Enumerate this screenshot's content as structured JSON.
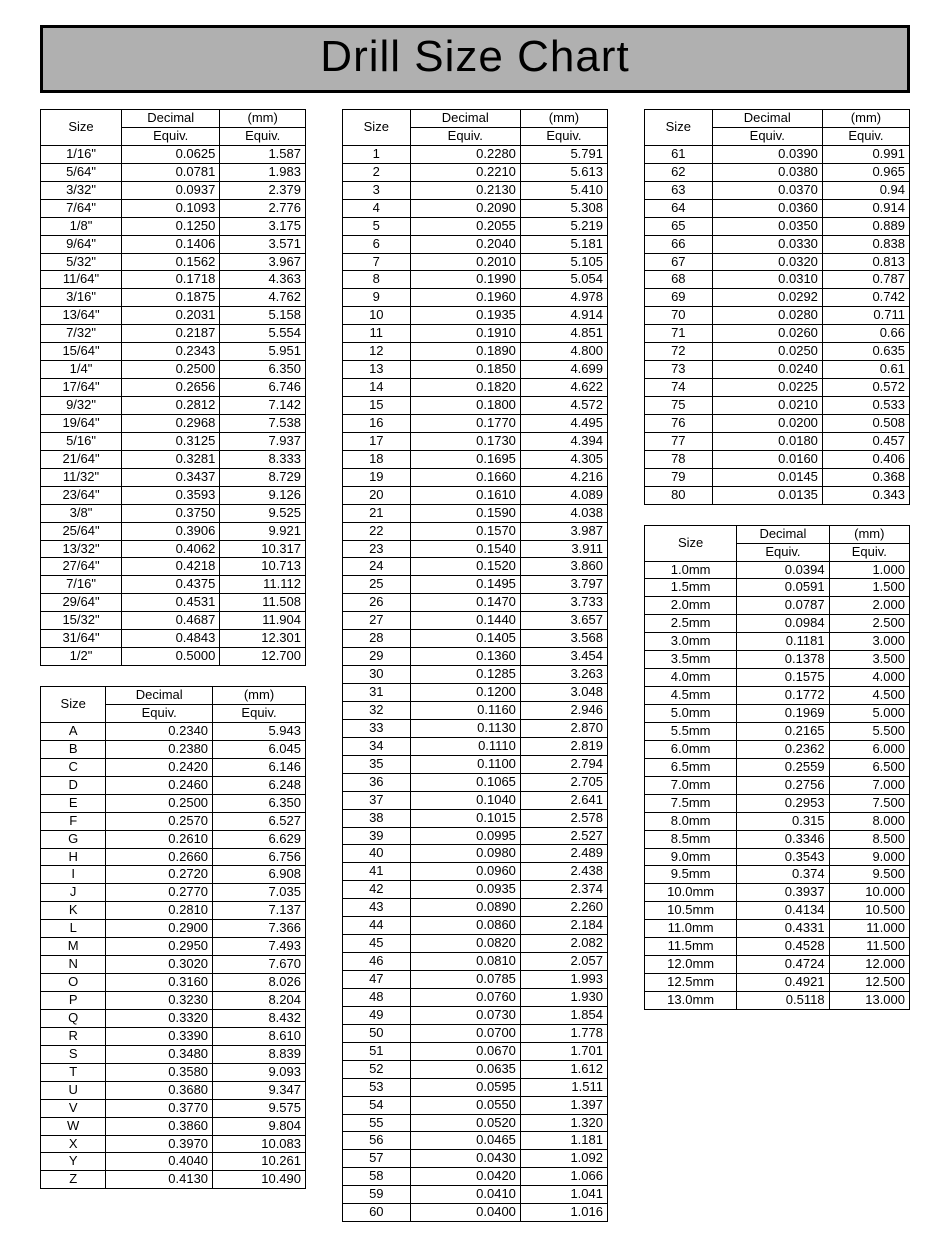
{
  "title": "Drill Size Chart",
  "columns": {
    "size": "Size",
    "dec1": "Decimal",
    "dec2": "Equiv.",
    "mm1": "(mm)",
    "mm2": "Equiv."
  },
  "fractional": [
    [
      "1/16\"",
      "0.0625",
      "1.587"
    ],
    [
      "5/64\"",
      "0.0781",
      "1.983"
    ],
    [
      "3/32\"",
      "0.0937",
      "2.379"
    ],
    [
      "7/64\"",
      "0.1093",
      "2.776"
    ],
    [
      "1/8\"",
      "0.1250",
      "3.175"
    ],
    [
      "9/64\"",
      "0.1406",
      "3.571"
    ],
    [
      "5/32\"",
      "0.1562",
      "3.967"
    ],
    [
      "11/64\"",
      "0.1718",
      "4.363"
    ],
    [
      "3/16\"",
      "0.1875",
      "4.762"
    ],
    [
      "13/64\"",
      "0.2031",
      "5.158"
    ],
    [
      "7/32\"",
      "0.2187",
      "5.554"
    ],
    [
      "15/64\"",
      "0.2343",
      "5.951"
    ],
    [
      "1/4\"",
      "0.2500",
      "6.350"
    ],
    [
      "17/64\"",
      "0.2656",
      "6.746"
    ],
    [
      "9/32\"",
      "0.2812",
      "7.142"
    ],
    [
      "19/64\"",
      "0.2968",
      "7.538"
    ],
    [
      "5/16\"",
      "0.3125",
      "7.937"
    ],
    [
      "21/64\"",
      "0.3281",
      "8.333"
    ],
    [
      "11/32\"",
      "0.3437",
      "8.729"
    ],
    [
      "23/64\"",
      "0.3593",
      "9.126"
    ],
    [
      "3/8\"",
      "0.3750",
      "9.525"
    ],
    [
      "25/64\"",
      "0.3906",
      "9.921"
    ],
    [
      "13/32\"",
      "0.4062",
      "10.317"
    ],
    [
      "27/64\"",
      "0.4218",
      "10.713"
    ],
    [
      "7/16\"",
      "0.4375",
      "11.112"
    ],
    [
      "29/64\"",
      "0.4531",
      "11.508"
    ],
    [
      "15/32\"",
      "0.4687",
      "11.904"
    ],
    [
      "31/64\"",
      "0.4843",
      "12.301"
    ],
    [
      "1/2\"",
      "0.5000",
      "12.700"
    ]
  ],
  "letter": [
    [
      "A",
      "0.2340",
      "5.943"
    ],
    [
      "B",
      "0.2380",
      "6.045"
    ],
    [
      "C",
      "0.2420",
      "6.146"
    ],
    [
      "D",
      "0.2460",
      "6.248"
    ],
    [
      "E",
      "0.2500",
      "6.350"
    ],
    [
      "F",
      "0.2570",
      "6.527"
    ],
    [
      "G",
      "0.2610",
      "6.629"
    ],
    [
      "H",
      "0.2660",
      "6.756"
    ],
    [
      "I",
      "0.2720",
      "6.908"
    ],
    [
      "J",
      "0.2770",
      "7.035"
    ],
    [
      "K",
      "0.2810",
      "7.137"
    ],
    [
      "L",
      "0.2900",
      "7.366"
    ],
    [
      "M",
      "0.2950",
      "7.493"
    ],
    [
      "N",
      "0.3020",
      "7.670"
    ],
    [
      "O",
      "0.3160",
      "8.026"
    ],
    [
      "P",
      "0.3230",
      "8.204"
    ],
    [
      "Q",
      "0.3320",
      "8.432"
    ],
    [
      "R",
      "0.3390",
      "8.610"
    ],
    [
      "S",
      "0.3480",
      "8.839"
    ],
    [
      "T",
      "0.3580",
      "9.093"
    ],
    [
      "U",
      "0.3680",
      "9.347"
    ],
    [
      "V",
      "0.3770",
      "9.575"
    ],
    [
      "W",
      "0.3860",
      "9.804"
    ],
    [
      "X",
      "0.3970",
      "10.083"
    ],
    [
      "Y",
      "0.4040",
      "10.261"
    ],
    [
      "Z",
      "0.4130",
      "10.490"
    ]
  ],
  "number": [
    [
      "1",
      "0.2280",
      "5.791"
    ],
    [
      "2",
      "0.2210",
      "5.613"
    ],
    [
      "3",
      "0.2130",
      "5.410"
    ],
    [
      "4",
      "0.2090",
      "5.308"
    ],
    [
      "5",
      "0.2055",
      "5.219"
    ],
    [
      "6",
      "0.2040",
      "5.181"
    ],
    [
      "7",
      "0.2010",
      "5.105"
    ],
    [
      "8",
      "0.1990",
      "5.054"
    ],
    [
      "9",
      "0.1960",
      "4.978"
    ],
    [
      "10",
      "0.1935",
      "4.914"
    ],
    [
      "11",
      "0.1910",
      "4.851"
    ],
    [
      "12",
      "0.1890",
      "4.800"
    ],
    [
      "13",
      "0.1850",
      "4.699"
    ],
    [
      "14",
      "0.1820",
      "4.622"
    ],
    [
      "15",
      "0.1800",
      "4.572"
    ],
    [
      "16",
      "0.1770",
      "4.495"
    ],
    [
      "17",
      "0.1730",
      "4.394"
    ],
    [
      "18",
      "0.1695",
      "4.305"
    ],
    [
      "19",
      "0.1660",
      "4.216"
    ],
    [
      "20",
      "0.1610",
      "4.089"
    ],
    [
      "21",
      "0.1590",
      "4.038"
    ],
    [
      "22",
      "0.1570",
      "3.987"
    ],
    [
      "23",
      "0.1540",
      "3.911"
    ],
    [
      "24",
      "0.1520",
      "3.860"
    ],
    [
      "25",
      "0.1495",
      "3.797"
    ],
    [
      "26",
      "0.1470",
      "3.733"
    ],
    [
      "27",
      "0.1440",
      "3.657"
    ],
    [
      "28",
      "0.1405",
      "3.568"
    ],
    [
      "29",
      "0.1360",
      "3.454"
    ],
    [
      "30",
      "0.1285",
      "3.263"
    ],
    [
      "31",
      "0.1200",
      "3.048"
    ],
    [
      "32",
      "0.1160",
      "2.946"
    ],
    [
      "33",
      "0.1130",
      "2.870"
    ],
    [
      "34",
      "0.1110",
      "2.819"
    ],
    [
      "35",
      "0.1100",
      "2.794"
    ],
    [
      "36",
      "0.1065",
      "2.705"
    ],
    [
      "37",
      "0.1040",
      "2.641"
    ],
    [
      "38",
      "0.1015",
      "2.578"
    ],
    [
      "39",
      "0.0995",
      "2.527"
    ],
    [
      "40",
      "0.0980",
      "2.489"
    ],
    [
      "41",
      "0.0960",
      "2.438"
    ],
    [
      "42",
      "0.0935",
      "2.374"
    ],
    [
      "43",
      "0.0890",
      "2.260"
    ],
    [
      "44",
      "0.0860",
      "2.184"
    ],
    [
      "45",
      "0.0820",
      "2.082"
    ],
    [
      "46",
      "0.0810",
      "2.057"
    ],
    [
      "47",
      "0.0785",
      "1.993"
    ],
    [
      "48",
      "0.0760",
      "1.930"
    ],
    [
      "49",
      "0.0730",
      "1.854"
    ],
    [
      "50",
      "0.0700",
      "1.778"
    ],
    [
      "51",
      "0.0670",
      "1.701"
    ],
    [
      "52",
      "0.0635",
      "1.612"
    ],
    [
      "53",
      "0.0595",
      "1.511"
    ],
    [
      "54",
      "0.0550",
      "1.397"
    ],
    [
      "55",
      "0.0520",
      "1.320"
    ],
    [
      "56",
      "0.0465",
      "1.181"
    ],
    [
      "57",
      "0.0430",
      "1.092"
    ],
    [
      "58",
      "0.0420",
      "1.066"
    ],
    [
      "59",
      "0.0410",
      "1.041"
    ],
    [
      "60",
      "0.0400",
      "1.016"
    ]
  ],
  "number2": [
    [
      "61",
      "0.0390",
      "0.991"
    ],
    [
      "62",
      "0.0380",
      "0.965"
    ],
    [
      "63",
      "0.0370",
      "0.94"
    ],
    [
      "64",
      "0.0360",
      "0.914"
    ],
    [
      "65",
      "0.0350",
      "0.889"
    ],
    [
      "66",
      "0.0330",
      "0.838"
    ],
    [
      "67",
      "0.0320",
      "0.813"
    ],
    [
      "68",
      "0.0310",
      "0.787"
    ],
    [
      "69",
      "0.0292",
      "0.742"
    ],
    [
      "70",
      "0.0280",
      "0.711"
    ],
    [
      "71",
      "0.0260",
      "0.66"
    ],
    [
      "72",
      "0.0250",
      "0.635"
    ],
    [
      "73",
      "0.0240",
      "0.61"
    ],
    [
      "74",
      "0.0225",
      "0.572"
    ],
    [
      "75",
      "0.0210",
      "0.533"
    ],
    [
      "76",
      "0.0200",
      "0.508"
    ],
    [
      "77",
      "0.0180",
      "0.457"
    ],
    [
      "78",
      "0.0160",
      "0.406"
    ],
    [
      "79",
      "0.0145",
      "0.368"
    ],
    [
      "80",
      "0.0135",
      "0.343"
    ]
  ],
  "metric": [
    [
      "1.0mm",
      "0.0394",
      "1.000"
    ],
    [
      "1.5mm",
      "0.0591",
      "1.500"
    ],
    [
      "2.0mm",
      "0.0787",
      "2.000"
    ],
    [
      "2.5mm",
      "0.0984",
      "2.500"
    ],
    [
      "3.0mm",
      "0.1181",
      "3.000"
    ],
    [
      "3.5mm",
      "0.1378",
      "3.500"
    ],
    [
      "4.0mm",
      "0.1575",
      "4.000"
    ],
    [
      "4.5mm",
      "0.1772",
      "4.500"
    ],
    [
      "5.0mm",
      "0.1969",
      "5.000"
    ],
    [
      "5.5mm",
      "0.2165",
      "5.500"
    ],
    [
      "6.0mm",
      "0.2362",
      "6.000"
    ],
    [
      "6.5mm",
      "0.2559",
      "6.500"
    ],
    [
      "7.0mm",
      "0.2756",
      "7.000"
    ],
    [
      "7.5mm",
      "0.2953",
      "7.500"
    ],
    [
      "8.0mm",
      "0.315",
      "8.000"
    ],
    [
      "8.5mm",
      "0.3346",
      "8.500"
    ],
    [
      "9.0mm",
      "0.3543",
      "9.000"
    ],
    [
      "9.5mm",
      "0.374",
      "9.500"
    ],
    [
      "10.0mm",
      "0.3937",
      "10.000"
    ],
    [
      "10.5mm",
      "0.4134",
      "10.500"
    ],
    [
      "11.0mm",
      "0.4331",
      "11.000"
    ],
    [
      "11.5mm",
      "0.4528",
      "11.500"
    ],
    [
      "12.0mm",
      "0.4724",
      "12.000"
    ],
    [
      "12.5mm",
      "0.4921",
      "12.500"
    ],
    [
      "13.0mm",
      "0.5118",
      "13.000"
    ]
  ]
}
